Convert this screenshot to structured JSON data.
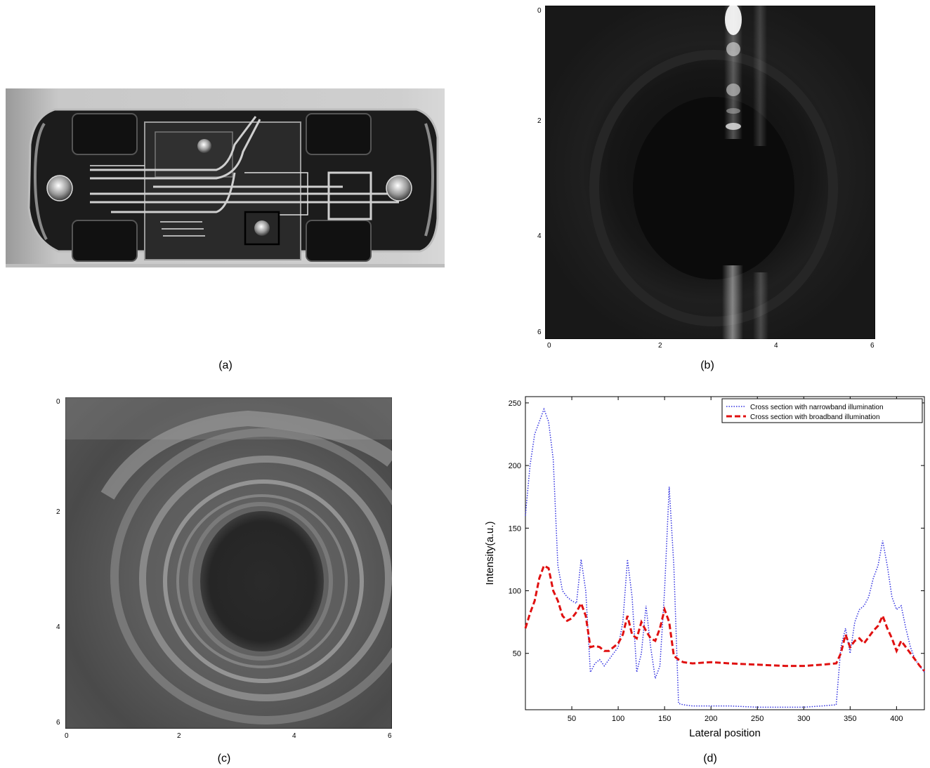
{
  "figure": {
    "panel_a": {
      "caption": "(a)"
    },
    "panel_b": {
      "caption": "(b)",
      "x_ticks": [
        "0",
        "2",
        "4",
        "6"
      ],
      "y_ticks": [
        "0",
        "2",
        "4",
        "6"
      ],
      "xlim": [
        0,
        6
      ],
      "ylim": [
        0,
        6
      ]
    },
    "panel_c": {
      "caption": "(c)",
      "x_ticks": [
        "0",
        "2",
        "4",
        "6"
      ],
      "y_ticks": [
        "0",
        "2",
        "4",
        "6"
      ],
      "xlim": [
        0,
        6
      ],
      "ylim": [
        0,
        6
      ]
    },
    "panel_d": {
      "caption": "(d)"
    }
  },
  "chart_data": {
    "type": "line",
    "title": "",
    "xlabel": "Lateral position",
    "ylabel": "Intensity(a.u.)",
    "xlim": [
      0,
      430
    ],
    "ylim": [
      5,
      255
    ],
    "x_ticks": [
      50,
      100,
      150,
      200,
      250,
      300,
      350,
      400
    ],
    "y_ticks": [
      50,
      100,
      150,
      200,
      250
    ],
    "legend_position": "top-right",
    "series": [
      {
        "name": "Cross section with narrowband illumination",
        "color": "#3030e0",
        "style": "dotted",
        "x": [
          0,
          5,
          10,
          15,
          20,
          25,
          30,
          35,
          40,
          45,
          50,
          55,
          60,
          65,
          70,
          75,
          80,
          85,
          90,
          95,
          100,
          105,
          110,
          115,
          120,
          125,
          130,
          135,
          140,
          145,
          150,
          155,
          160,
          165,
          170,
          180,
          200,
          220,
          250,
          280,
          300,
          320,
          335,
          340,
          345,
          350,
          355,
          360,
          365,
          370,
          375,
          380,
          385,
          390,
          395,
          400,
          405,
          410,
          415,
          420,
          425,
          430
        ],
        "y": [
          160,
          200,
          225,
          235,
          245,
          235,
          205,
          120,
          100,
          95,
          92,
          90,
          125,
          100,
          35,
          42,
          45,
          40,
          45,
          50,
          55,
          75,
          125,
          95,
          35,
          50,
          88,
          55,
          30,
          40,
          100,
          183,
          120,
          10,
          9,
          8,
          8,
          8,
          7,
          7,
          7,
          8,
          9,
          55,
          70,
          50,
          75,
          85,
          88,
          95,
          110,
          120,
          140,
          120,
          95,
          85,
          88,
          70,
          55,
          45,
          40,
          35
        ]
      },
      {
        "name": "Cross section with broadband illumination",
        "color": "#e01010",
        "style": "dashed",
        "x": [
          0,
          5,
          10,
          15,
          20,
          25,
          30,
          35,
          40,
          45,
          50,
          55,
          60,
          65,
          70,
          75,
          80,
          85,
          90,
          95,
          100,
          105,
          110,
          115,
          120,
          125,
          130,
          135,
          140,
          145,
          150,
          155,
          160,
          165,
          170,
          180,
          200,
          220,
          250,
          280,
          300,
          320,
          335,
          340,
          345,
          350,
          355,
          360,
          365,
          370,
          375,
          380,
          385,
          390,
          395,
          400,
          405,
          410,
          415,
          420,
          425,
          430
        ],
        "y": [
          70,
          82,
          92,
          110,
          120,
          118,
          100,
          92,
          80,
          76,
          78,
          83,
          90,
          80,
          55,
          56,
          55,
          52,
          52,
          55,
          58,
          65,
          80,
          65,
          62,
          75,
          68,
          62,
          60,
          70,
          85,
          75,
          48,
          45,
          43,
          42,
          43,
          42,
          41,
          40,
          40,
          41,
          42,
          50,
          65,
          55,
          60,
          62,
          58,
          63,
          68,
          72,
          80,
          70,
          62,
          52,
          60,
          55,
          50,
          45,
          40,
          36
        ]
      }
    ]
  }
}
